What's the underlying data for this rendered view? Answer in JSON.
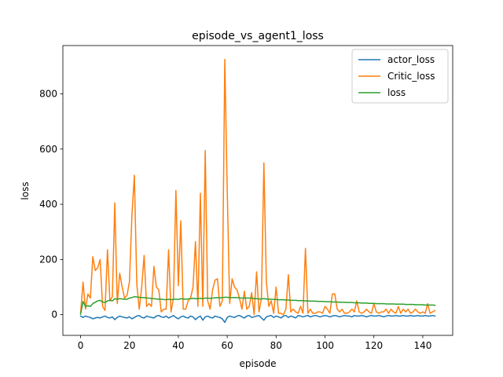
{
  "chart_data": {
    "type": "line",
    "title": "episode_vs_agent1_loss",
    "xlabel": "episode",
    "ylabel": "loss",
    "xlim": [
      -7.25,
      152.25
    ],
    "ylim": [
      -75,
      975
    ],
    "xticks": [
      0,
      20,
      40,
      60,
      80,
      100,
      120,
      140
    ],
    "yticks": [
      0,
      200,
      400,
      600,
      800
    ],
    "legend_position": "top-right",
    "grid": false,
    "series": [
      {
        "name": "actor_loss",
        "color": "#1f77b4",
        "x": [
          0,
          1,
          2,
          3,
          4,
          5,
          6,
          7,
          8,
          9,
          10,
          11,
          12,
          13,
          14,
          15,
          16,
          17,
          18,
          19,
          20,
          21,
          22,
          23,
          24,
          25,
          26,
          27,
          28,
          29,
          30,
          31,
          32,
          33,
          34,
          35,
          36,
          37,
          38,
          39,
          40,
          41,
          42,
          43,
          44,
          45,
          46,
          47,
          48,
          49,
          50,
          51,
          52,
          53,
          54,
          55,
          56,
          57,
          58,
          59,
          60,
          61,
          62,
          63,
          64,
          65,
          66,
          67,
          68,
          69,
          70,
          71,
          72,
          73,
          74,
          75,
          76,
          77,
          78,
          79,
          80,
          81,
          82,
          83,
          84,
          85,
          86,
          87,
          88,
          89,
          90,
          91,
          92,
          93,
          94,
          95,
          96,
          97,
          98,
          99,
          100,
          101,
          102,
          103,
          104,
          105,
          106,
          107,
          108,
          109,
          110,
          111,
          112,
          113,
          114,
          115,
          116,
          117,
          118,
          119,
          120,
          121,
          122,
          123,
          124,
          125,
          126,
          127,
          128,
          129,
          130,
          131,
          132,
          133,
          134,
          135,
          136,
          137,
          138,
          139,
          140,
          141,
          142,
          143,
          144,
          145
        ],
        "values": [
          -5,
          -10,
          -5,
          -8,
          -10,
          -15,
          -12,
          -10,
          -12,
          -8,
          -5,
          -10,
          -12,
          -8,
          -18,
          -10,
          -5,
          -8,
          -10,
          -12,
          -8,
          -15,
          -10,
          -5,
          -3,
          -10,
          -12,
          -5,
          -8,
          -10,
          -12,
          -5,
          -3,
          -8,
          -10,
          -5,
          -12,
          -8,
          -3,
          -10,
          -15,
          -8,
          -5,
          -10,
          -12,
          -5,
          -8,
          -18,
          -10,
          -5,
          -20,
          -8,
          -5,
          -10,
          -12,
          -5,
          -8,
          -10,
          -15,
          -28,
          -10,
          -5,
          -8,
          -10,
          -5,
          -3,
          -8,
          -12,
          -5,
          -3,
          -10,
          -8,
          -5,
          -3,
          -12,
          -20,
          -8,
          -5,
          -3,
          -10,
          -5,
          -8,
          -12,
          -5,
          -3,
          -10,
          -5,
          -8,
          -12,
          -3,
          -5,
          -8,
          -5,
          -3,
          -8,
          -5,
          -3,
          -5,
          -8,
          -5,
          -3,
          -5,
          -8,
          -5,
          -3,
          -5,
          -8,
          -5,
          -3,
          -5,
          -5,
          -8,
          -3,
          -5,
          -5,
          -3,
          -5,
          -8,
          -5,
          -3,
          -5,
          -5,
          -3,
          -5,
          -8,
          -5,
          -3,
          -5,
          -5,
          -3,
          -5,
          -5,
          -3,
          -5,
          -5,
          -3,
          -5,
          -5,
          -3,
          -5,
          -5,
          -3,
          -5,
          -5,
          -3,
          -5
        ]
      },
      {
        "name": "Critic_loss",
        "color": "#ff7f0e",
        "x": [
          0,
          1,
          2,
          3,
          4,
          5,
          6,
          7,
          8,
          9,
          10,
          11,
          12,
          13,
          14,
          15,
          16,
          17,
          18,
          19,
          20,
          21,
          22,
          23,
          24,
          25,
          26,
          27,
          28,
          29,
          30,
          31,
          32,
          33,
          34,
          35,
          36,
          37,
          38,
          39,
          40,
          41,
          42,
          43,
          44,
          45,
          46,
          47,
          48,
          49,
          50,
          51,
          52,
          53,
          54,
          55,
          56,
          57,
          58,
          59,
          60,
          61,
          62,
          63,
          64,
          65,
          66,
          67,
          68,
          69,
          70,
          71,
          72,
          73,
          74,
          75,
          76,
          77,
          78,
          79,
          80,
          81,
          82,
          83,
          84,
          85,
          86,
          87,
          88,
          89,
          90,
          91,
          92,
          93,
          94,
          95,
          96,
          97,
          98,
          99,
          100,
          101,
          102,
          103,
          104,
          105,
          106,
          107,
          108,
          109,
          110,
          111,
          112,
          113,
          114,
          115,
          116,
          117,
          118,
          119,
          120,
          121,
          122,
          123,
          124,
          125,
          126,
          127,
          128,
          129,
          130,
          131,
          132,
          133,
          134,
          135,
          136,
          137,
          138,
          139,
          140,
          141,
          142,
          143,
          144,
          145
        ],
        "values": [
          5,
          118,
          20,
          75,
          60,
          210,
          160,
          170,
          200,
          30,
          15,
          235,
          50,
          65,
          405,
          40,
          150,
          100,
          60,
          70,
          120,
          360,
          505,
          110,
          20,
          100,
          215,
          30,
          40,
          30,
          175,
          100,
          90,
          10,
          20,
          20,
          235,
          10,
          60,
          450,
          105,
          340,
          20,
          20,
          50,
          60,
          100,
          265,
          30,
          440,
          30,
          595,
          50,
          20,
          90,
          125,
          130,
          30,
          50,
          925,
          450,
          40,
          130,
          100,
          90,
          60,
          20,
          85,
          20,
          30,
          80,
          0,
          155,
          10,
          60,
          550,
          120,
          30,
          50,
          5,
          100,
          5,
          5,
          0,
          20,
          145,
          10,
          20,
          10,
          5,
          30,
          5,
          240,
          5,
          20,
          5,
          5,
          10,
          10,
          5,
          30,
          20,
          5,
          75,
          75,
          20,
          10,
          20,
          5,
          5,
          10,
          20,
          10,
          50,
          10,
          5,
          10,
          20,
          10,
          5,
          40,
          10,
          5,
          10,
          10,
          20,
          5,
          20,
          10,
          5,
          30,
          5,
          20,
          10,
          20,
          5,
          10,
          20,
          10,
          5,
          10,
          5,
          40,
          5,
          10,
          15
        ]
      },
      {
        "name": "loss",
        "color": "#2ca02c",
        "x": [
          0,
          1,
          2,
          3,
          4,
          5,
          6,
          7,
          8,
          9,
          10,
          11,
          12,
          13,
          14,
          15,
          16,
          17,
          18,
          19,
          20,
          21,
          22,
          23,
          24,
          25,
          26,
          27,
          28,
          29,
          30,
          31,
          32,
          33,
          34,
          35,
          36,
          37,
          38,
          39,
          40,
          41,
          42,
          43,
          44,
          45,
          46,
          47,
          48,
          49,
          50,
          51,
          52,
          53,
          54,
          55,
          56,
          57,
          58,
          59,
          60,
          61,
          62,
          63,
          64,
          65,
          66,
          67,
          68,
          69,
          70,
          71,
          72,
          73,
          74,
          75,
          76,
          77,
          78,
          79,
          80,
          81,
          82,
          83,
          84,
          85,
          86,
          87,
          88,
          89,
          90,
          91,
          92,
          93,
          94,
          95,
          96,
          97,
          98,
          99,
          100,
          101,
          102,
          103,
          104,
          105,
          106,
          107,
          108,
          109,
          110,
          111,
          112,
          113,
          114,
          115,
          116,
          117,
          118,
          119,
          120,
          121,
          122,
          123,
          124,
          125,
          126,
          127,
          128,
          129,
          130,
          131,
          132,
          133,
          134,
          135,
          136,
          137,
          138,
          139,
          140,
          141,
          142,
          143,
          144,
          145
        ],
        "values": [
          2,
          48,
          30,
          32,
          30,
          40,
          45,
          50,
          52,
          46,
          44,
          50,
          52,
          50,
          58,
          56,
          58,
          57,
          56,
          56,
          60,
          62,
          65,
          64,
          63,
          62,
          62,
          60,
          60,
          58,
          58,
          57,
          56,
          56,
          55,
          54,
          56,
          54,
          56,
          56,
          55,
          58,
          57,
          56,
          57,
          58,
          59,
          58,
          58,
          59,
          58,
          60,
          60,
          59,
          60,
          61,
          62,
          61,
          62,
          63,
          63,
          62,
          62,
          62,
          62,
          61,
          60,
          61,
          60,
          60,
          60,
          58,
          58,
          57,
          57,
          58,
          57,
          56,
          56,
          55,
          55,
          54,
          54,
          54,
          53,
          53,
          52,
          52,
          52,
          51,
          51,
          51,
          50,
          50,
          49,
          49,
          49,
          48,
          48,
          48,
          47,
          47,
          47,
          46,
          46,
          46,
          45,
          45,
          45,
          44,
          44,
          44,
          43,
          43,
          43,
          42,
          42,
          42,
          41,
          41,
          41,
          40,
          40,
          40,
          40,
          39,
          39,
          39,
          39,
          38,
          38,
          38,
          38,
          37,
          37,
          37,
          37,
          36,
          36,
          36,
          36,
          35,
          35,
          35,
          35,
          34
        ]
      }
    ]
  }
}
